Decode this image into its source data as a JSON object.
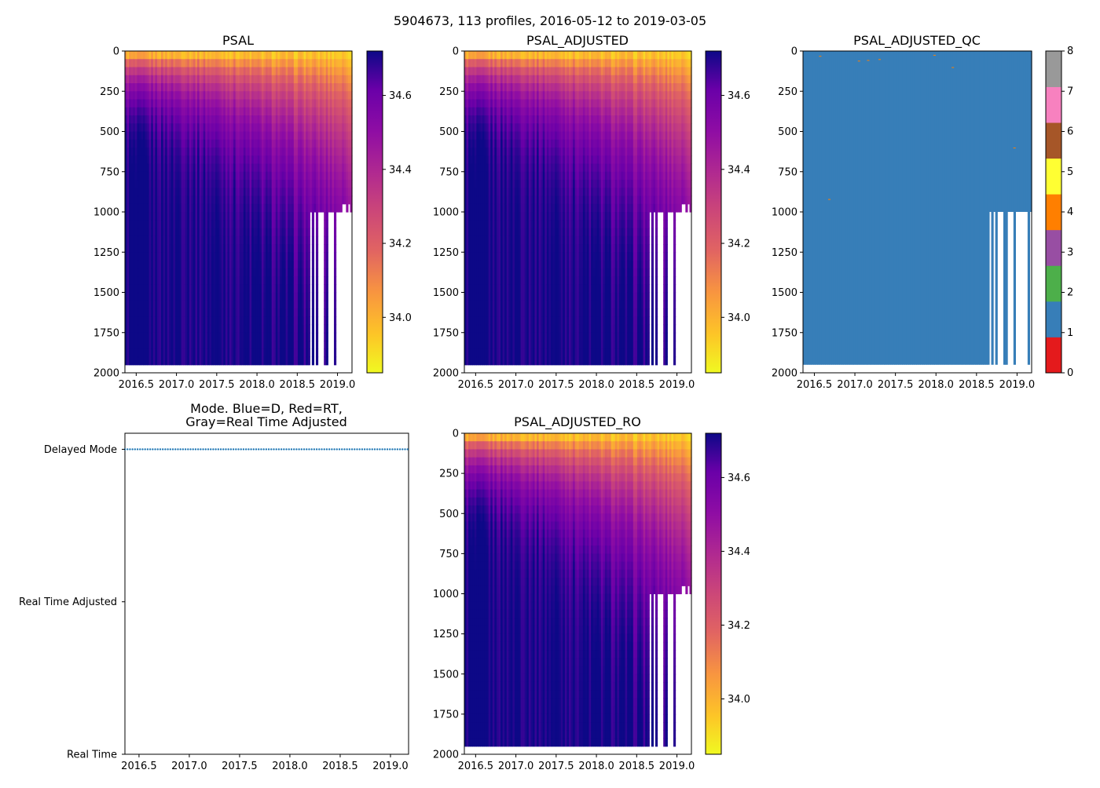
{
  "figure": {
    "suptitle": "5904673, 113 profiles, 2016-05-12 to 2019-03-05"
  },
  "chart_data": [
    {
      "type": "heatmap",
      "title": "PSAL",
      "variable": "PSAL",
      "x_ticks": [
        "2016.5",
        "2017.0",
        "2017.5",
        "2018.0",
        "2018.5",
        "2019.0"
      ],
      "y_ticks": [
        "0",
        "250",
        "500",
        "750",
        "1000",
        "1250",
        "1500",
        "1750",
        "2000"
      ],
      "xlim": [
        2016.36,
        2019.18
      ],
      "ylim": [
        2000,
        0
      ],
      "colorbar": {
        "colormap": "plasma_r",
        "range": [
          33.85,
          34.72
        ],
        "ticks": [
          "34.0",
          "34.2",
          "34.4",
          "34.6"
        ]
      }
    },
    {
      "type": "heatmap",
      "title": "PSAL_ADJUSTED",
      "variable": "PSAL_ADJUSTED",
      "x_ticks": [
        "2016.5",
        "2017.0",
        "2017.5",
        "2018.0",
        "2018.5",
        "2019.0"
      ],
      "y_ticks": [
        "0",
        "250",
        "500",
        "750",
        "1000",
        "1250",
        "1500",
        "1750",
        "2000"
      ],
      "xlim": [
        2016.36,
        2019.18
      ],
      "ylim": [
        2000,
        0
      ],
      "colorbar": {
        "colormap": "plasma_r",
        "range": [
          33.85,
          34.72
        ],
        "ticks": [
          "34.0",
          "34.2",
          "34.4",
          "34.6"
        ]
      }
    },
    {
      "type": "heatmap",
      "title": "PSAL_ADJUSTED_QC",
      "variable": "PSAL_ADJUSTED_QC",
      "x_ticks": [
        "2016.5",
        "2017.0",
        "2017.5",
        "2018.0",
        "2018.5",
        "2019.0"
      ],
      "y_ticks": [
        "0",
        "250",
        "500",
        "750",
        "1000",
        "1250",
        "1500",
        "1750",
        "2000"
      ],
      "xlim": [
        2016.36,
        2019.18
      ],
      "ylim": [
        2000,
        0
      ],
      "dominant_flag": 1,
      "colorbar": {
        "ticks": [
          "0",
          "1",
          "2",
          "3",
          "4",
          "5",
          "6",
          "7",
          "8"
        ],
        "colors": [
          "#e41a1c",
          "#377eb8",
          "#4daf4a",
          "#984ea3",
          "#ff7f00",
          "#ffff33",
          "#a65628",
          "#f781bf",
          "#999999"
        ]
      }
    },
    {
      "type": "scatter",
      "title": "Mode. Blue=D, Red=RT,\nGray=Real Time Adjusted",
      "title_lines": [
        "Mode. Blue=D, Red=RT,",
        "Gray=Real Time Adjusted"
      ],
      "x_ticks": [
        "2016.5",
        "2017.0",
        "2017.5",
        "2018.0",
        "2018.5",
        "2019.0"
      ],
      "xlim": [
        2016.36,
        2019.18
      ],
      "y_categories": [
        "Delayed Mode",
        "Real Time Adjusted",
        "Real Time"
      ],
      "series": [
        {
          "name": "Delayed Mode",
          "color": "#1f77b4",
          "y": "Delayed Mode",
          "n_points": 113
        }
      ]
    },
    {
      "type": "heatmap",
      "title": "PSAL_ADJUSTED_RO",
      "variable": "PSAL_ADJUSTED_RO",
      "x_ticks": [
        "2016.5",
        "2017.0",
        "2017.5",
        "2018.0",
        "2018.5",
        "2019.0"
      ],
      "y_ticks": [
        "0",
        "250",
        "500",
        "750",
        "1000",
        "1250",
        "1500",
        "1750",
        "2000"
      ],
      "xlim": [
        2016.36,
        2019.18
      ],
      "ylim": [
        2000,
        0
      ],
      "colorbar": {
        "colormap": "plasma_r",
        "range": [
          33.85,
          34.72
        ],
        "ticks": [
          "34.0",
          "34.2",
          "34.4",
          "34.6"
        ]
      }
    }
  ]
}
